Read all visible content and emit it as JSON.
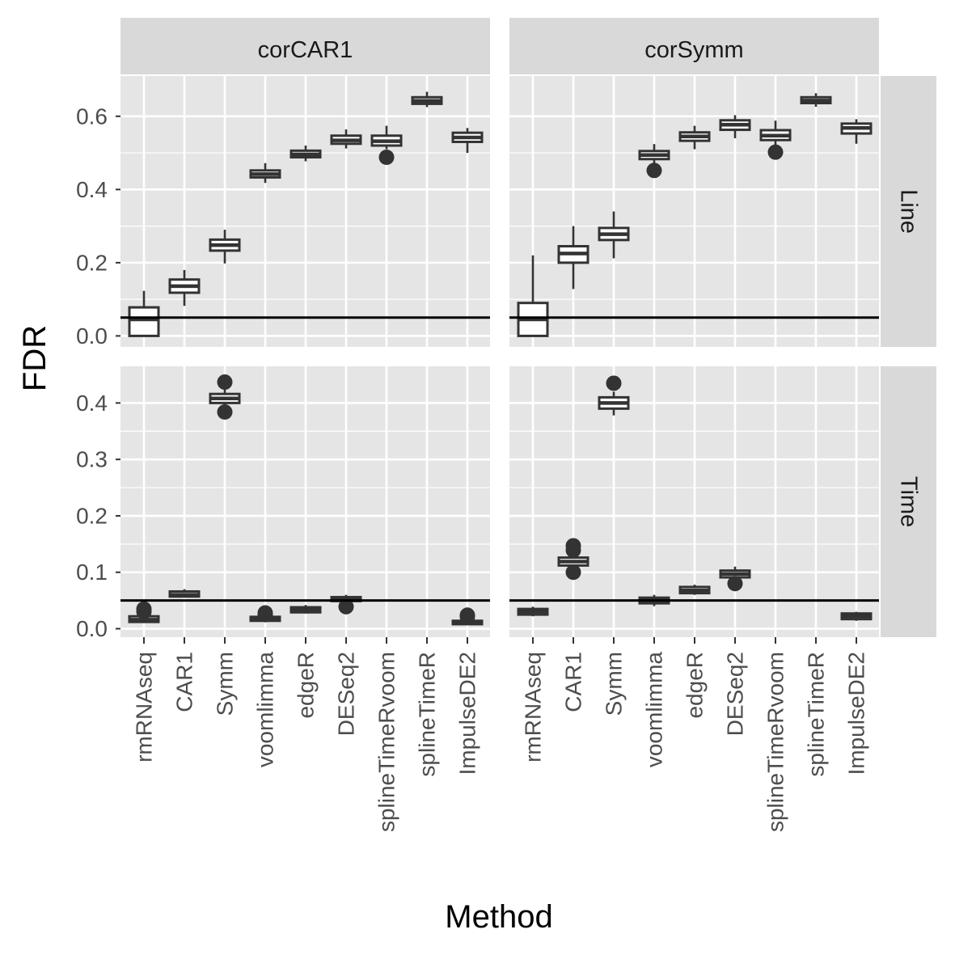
{
  "chart_data": {
    "type": "boxplot",
    "title": "",
    "xlabel": "Method",
    "ylabel": "FDR",
    "categories": [
      "rmRNAseq",
      "CAR1",
      "Symm",
      "voomlimma",
      "edgeR",
      "DESeq2",
      "splineTimeRvoom",
      "splineTimeR",
      "ImpulseDE2"
    ],
    "reference_line": 0.05,
    "grid": true,
    "facet_columns": [
      "corCAR1",
      "corSymm"
    ],
    "facet_rows": [
      "Line",
      "Time"
    ],
    "y_axes": {
      "Line": {
        "ticks": [
          0.0,
          0.2,
          0.4,
          0.6
        ],
        "tick_labels": [
          "0.0",
          "0.2",
          "0.4",
          "0.6"
        ],
        "ylim": [
          -0.03,
          0.71
        ]
      },
      "Time": {
        "ticks": [
          0.0,
          0.1,
          0.2,
          0.3,
          0.4
        ],
        "tick_labels": [
          "0.0",
          "0.1",
          "0.2",
          "0.3",
          "0.4"
        ],
        "ylim": [
          -0.015,
          0.465
        ]
      }
    },
    "panels": [
      {
        "column": "corCAR1",
        "row": "Line",
        "boxes": [
          {
            "method": "rmRNAseq",
            "min": 0.0,
            "q1": 0.0,
            "median": 0.045,
            "q3": 0.078,
            "max": 0.123,
            "outliers": []
          },
          {
            "method": "CAR1",
            "min": 0.082,
            "q1": 0.118,
            "median": 0.136,
            "q3": 0.154,
            "max": 0.18,
            "outliers": []
          },
          {
            "method": "Symm",
            "min": 0.198,
            "q1": 0.233,
            "median": 0.248,
            "q3": 0.263,
            "max": 0.29,
            "outliers": []
          },
          {
            "method": "voomlimma",
            "min": 0.418,
            "q1": 0.433,
            "median": 0.442,
            "q3": 0.452,
            "max": 0.472,
            "outliers": []
          },
          {
            "method": "edgeR",
            "min": 0.477,
            "q1": 0.488,
            "median": 0.496,
            "q3": 0.506,
            "max": 0.52,
            "outliers": []
          },
          {
            "method": "DESeq2",
            "min": 0.512,
            "q1": 0.525,
            "median": 0.534,
            "q3": 0.547,
            "max": 0.564,
            "outliers": []
          },
          {
            "method": "splineTimeRvoom",
            "min": 0.51,
            "q1": 0.52,
            "median": 0.532,
            "q3": 0.547,
            "max": 0.574,
            "outliers": [
              0.488
            ]
          },
          {
            "method": "splineTimeR",
            "min": 0.625,
            "q1": 0.634,
            "median": 0.642,
            "q3": 0.652,
            "max": 0.667,
            "outliers": []
          },
          {
            "method": "ImpulseDE2",
            "min": 0.5,
            "q1": 0.53,
            "median": 0.542,
            "q3": 0.555,
            "max": 0.568,
            "outliers": []
          }
        ]
      },
      {
        "column": "corSymm",
        "row": "Line",
        "boxes": [
          {
            "method": "rmRNAseq",
            "min": 0.0,
            "q1": 0.0,
            "median": 0.045,
            "q3": 0.09,
            "max": 0.22,
            "outliers": []
          },
          {
            "method": "CAR1",
            "min": 0.128,
            "q1": 0.2,
            "median": 0.225,
            "q3": 0.245,
            "max": 0.3,
            "outliers": []
          },
          {
            "method": "Symm",
            "min": 0.212,
            "q1": 0.262,
            "median": 0.278,
            "q3": 0.295,
            "max": 0.34,
            "outliers": []
          },
          {
            "method": "voomlimma",
            "min": 0.465,
            "q1": 0.483,
            "median": 0.494,
            "q3": 0.505,
            "max": 0.524,
            "outliers": [
              0.452
            ]
          },
          {
            "method": "edgeR",
            "min": 0.51,
            "q1": 0.533,
            "median": 0.545,
            "q3": 0.556,
            "max": 0.574,
            "outliers": []
          },
          {
            "method": "DESeq2",
            "min": 0.54,
            "q1": 0.563,
            "median": 0.577,
            "q3": 0.589,
            "max": 0.603,
            "outliers": []
          },
          {
            "method": "splineTimeRvoom",
            "min": 0.52,
            "q1": 0.535,
            "median": 0.547,
            "q3": 0.562,
            "max": 0.588,
            "outliers": [
              0.502
            ]
          },
          {
            "method": "splineTimeR",
            "min": 0.626,
            "q1": 0.636,
            "median": 0.643,
            "q3": 0.652,
            "max": 0.663,
            "outliers": []
          },
          {
            "method": "ImpulseDE2",
            "min": 0.525,
            "q1": 0.553,
            "median": 0.568,
            "q3": 0.58,
            "max": 0.592,
            "outliers": []
          }
        ]
      },
      {
        "column": "corCAR1",
        "row": "Time",
        "boxes": [
          {
            "method": "rmRNAseq",
            "min": 0.01,
            "q1": 0.012,
            "median": 0.016,
            "q3": 0.022,
            "max": 0.028,
            "outliers": [
              0.035,
              0.03
            ]
          },
          {
            "method": "CAR1",
            "min": 0.055,
            "q1": 0.057,
            "median": 0.06,
            "q3": 0.066,
            "max": 0.07,
            "outliers": []
          },
          {
            "method": "Symm",
            "min": 0.395,
            "q1": 0.4,
            "median": 0.408,
            "q3": 0.416,
            "max": 0.425,
            "outliers": [
              0.437,
              0.384
            ]
          },
          {
            "method": "voomlimma",
            "min": 0.013,
            "q1": 0.014,
            "median": 0.017,
            "q3": 0.021,
            "max": 0.023,
            "outliers": [
              0.028,
              0.025
            ]
          },
          {
            "method": "edgeR",
            "min": 0.027,
            "q1": 0.029,
            "median": 0.033,
            "q3": 0.038,
            "max": 0.042,
            "outliers": []
          },
          {
            "method": "DESeq2",
            "min": 0.046,
            "q1": 0.049,
            "median": 0.053,
            "q3": 0.056,
            "max": 0.06,
            "outliers": [
              0.039
            ]
          },
          {
            "method": "ImpulseDE2",
            "min": 0.007,
            "q1": 0.008,
            "median": 0.011,
            "q3": 0.014,
            "max": 0.017,
            "outliers": [
              0.024,
              0.021
            ]
          }
        ]
      },
      {
        "column": "corSymm",
        "row": "Time",
        "boxes": [
          {
            "method": "rmRNAseq",
            "min": 0.022,
            "q1": 0.025,
            "median": 0.03,
            "q3": 0.035,
            "max": 0.039,
            "outliers": []
          },
          {
            "method": "CAR1",
            "min": 0.105,
            "q1": 0.112,
            "median": 0.119,
            "q3": 0.126,
            "max": 0.132,
            "outliers": [
              0.147,
              0.139,
              0.1
            ]
          },
          {
            "method": "Symm",
            "min": 0.378,
            "q1": 0.39,
            "median": 0.4,
            "q3": 0.41,
            "max": 0.42,
            "outliers": [
              0.435
            ]
          },
          {
            "method": "voomlimma",
            "min": 0.04,
            "q1": 0.045,
            "median": 0.05,
            "q3": 0.055,
            "max": 0.06,
            "outliers": []
          },
          {
            "method": "edgeR",
            "min": 0.06,
            "q1": 0.063,
            "median": 0.068,
            "q3": 0.074,
            "max": 0.078,
            "outliers": []
          },
          {
            "method": "DESeq2",
            "min": 0.085,
            "q1": 0.091,
            "median": 0.097,
            "q3": 0.103,
            "max": 0.11,
            "outliers": [
              0.08
            ]
          },
          {
            "method": "ImpulseDE2",
            "min": 0.014,
            "q1": 0.017,
            "median": 0.022,
            "q3": 0.027,
            "max": 0.03,
            "outliers": []
          }
        ]
      }
    ],
    "colors": {
      "panel_background": "#e5e5e5",
      "gridline": "#ffffff",
      "strip_background": "#d9d9d9",
      "box_fill_rmRNAseq": "#ffffff",
      "box_fill": "#ffffff",
      "box_line": "#333333",
      "reference_line": "#000000"
    }
  }
}
